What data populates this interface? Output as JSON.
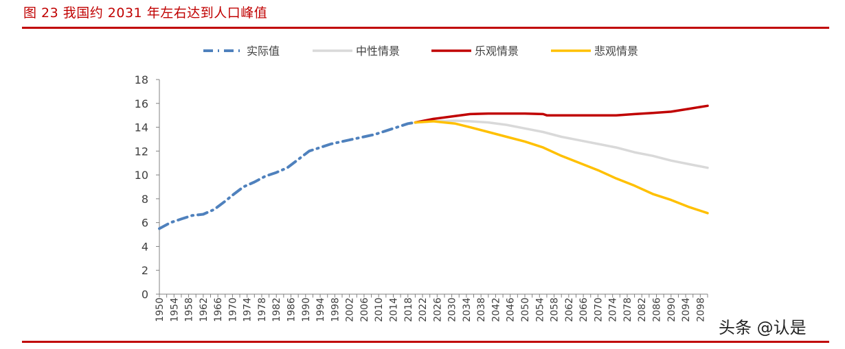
{
  "figure": {
    "title": "图 23 我国约 2031 年左右达到人口峰值"
  },
  "watermark": "头条 @认是",
  "colors": {
    "accent": "#C00000",
    "actual": "#4F81BD",
    "neutral": "#D9D9D9",
    "optimistic": "#C00000",
    "pessimistic": "#FFC000",
    "axis": "#808080",
    "text": "#404040"
  },
  "chart_data": {
    "type": "line",
    "title": "",
    "xlabel": "",
    "ylabel": "",
    "ylim": [
      0,
      18
    ],
    "xlim": [
      1950,
      2100
    ],
    "yticks": [
      0,
      2,
      4,
      6,
      8,
      10,
      12,
      14,
      16,
      18
    ],
    "xticks": [
      1950,
      1954,
      1958,
      1962,
      1966,
      1970,
      1974,
      1978,
      1982,
      1986,
      1990,
      1994,
      1998,
      2002,
      2006,
      2010,
      2014,
      2018,
      2022,
      2026,
      2030,
      2034,
      2038,
      2042,
      2046,
      2050,
      2054,
      2058,
      2062,
      2066,
      2070,
      2074,
      2078,
      2082,
      2086,
      2090,
      2094,
      2098
    ],
    "grid": false,
    "legend_position": "top",
    "series": [
      {
        "name": "实际值",
        "style": "dash-dot",
        "color": "#4F81BD",
        "x": [
          1950,
          1953,
          1956,
          1959,
          1962,
          1965,
          1968,
          1970,
          1973,
          1976,
          1979,
          1982,
          1985,
          1988,
          1991,
          1994,
          1997,
          2000,
          2003,
          2006,
          2009,
          2012,
          2015,
          2018,
          2020
        ],
        "y": [
          5.5,
          6.0,
          6.3,
          6.6,
          6.7,
          7.1,
          7.8,
          8.3,
          9.0,
          9.4,
          9.9,
          10.2,
          10.6,
          11.3,
          12.0,
          12.3,
          12.6,
          12.8,
          13.0,
          13.2,
          13.4,
          13.7,
          14.0,
          14.3,
          14.4
        ]
      },
      {
        "name": "中性情景",
        "style": "solid",
        "color": "#D9D9D9",
        "x": [
          2020,
          2025,
          2031,
          2035,
          2040,
          2045,
          2050,
          2055,
          2060,
          2065,
          2070,
          2075,
          2080,
          2085,
          2090,
          2095,
          2100
        ],
        "y": [
          14.4,
          14.5,
          14.55,
          14.5,
          14.4,
          14.2,
          13.9,
          13.6,
          13.2,
          12.9,
          12.6,
          12.3,
          11.9,
          11.6,
          11.2,
          10.9,
          10.6
        ]
      },
      {
        "name": "乐观情景",
        "style": "solid",
        "color": "#C00000",
        "x": [
          2020,
          2025,
          2030,
          2035,
          2040,
          2045,
          2050,
          2055,
          2056,
          2060,
          2065,
          2070,
          2075,
          2080,
          2085,
          2090,
          2095,
          2100
        ],
        "y": [
          14.4,
          14.7,
          14.9,
          15.1,
          15.15,
          15.15,
          15.15,
          15.1,
          15.0,
          15.0,
          15.0,
          15.0,
          15.0,
          15.1,
          15.2,
          15.3,
          15.55,
          15.8
        ]
      },
      {
        "name": "悲观情景",
        "style": "solid",
        "color": "#FFC000",
        "x": [
          2020,
          2025,
          2028,
          2031,
          2035,
          2040,
          2045,
          2050,
          2055,
          2060,
          2065,
          2070,
          2075,
          2080,
          2085,
          2090,
          2095,
          2100
        ],
        "y": [
          14.4,
          14.5,
          14.4,
          14.3,
          14.0,
          13.6,
          13.2,
          12.8,
          12.3,
          11.6,
          11.0,
          10.4,
          9.7,
          9.1,
          8.4,
          7.9,
          7.3,
          6.8
        ]
      }
    ]
  }
}
